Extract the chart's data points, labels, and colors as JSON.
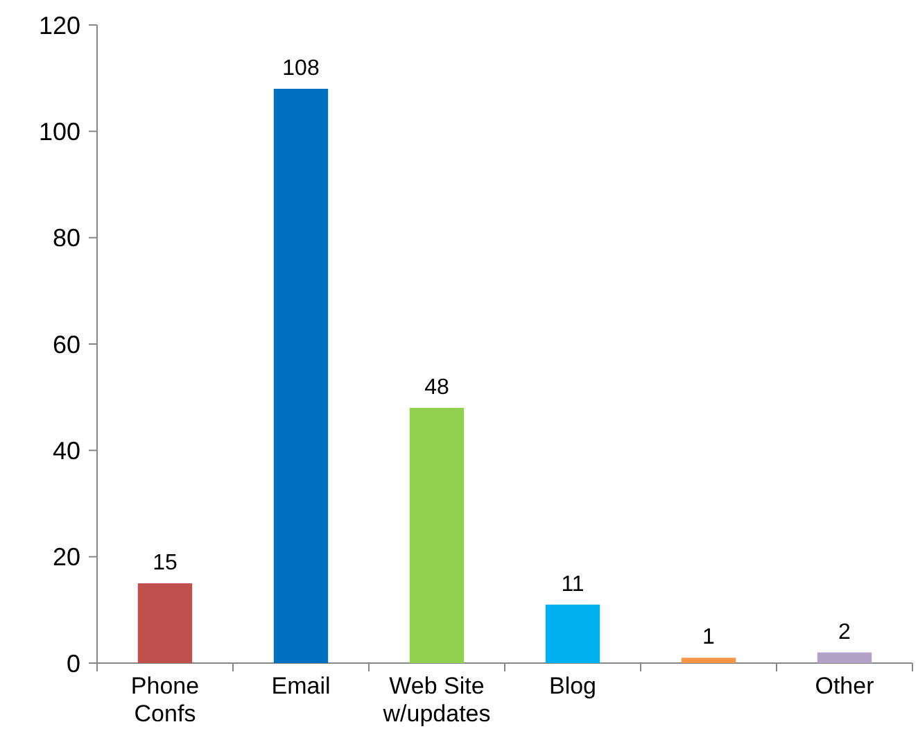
{
  "chart_data": {
    "type": "bar",
    "categories": [
      "Phone Confs",
      "Email",
      "Web Site w/updates",
      "Blog",
      null,
      "Other"
    ],
    "values": [
      15,
      108,
      48,
      11,
      1,
      2
    ],
    "colors": [
      "#c0504d",
      "#0070c0",
      "#92d050",
      "#00b0f0",
      "#f79646",
      "#b3a2c7"
    ],
    "ylim": [
      0,
      120
    ],
    "yticks": [
      0,
      20,
      40,
      60,
      80,
      100,
      120
    ],
    "grid": false,
    "data_labels": true
  }
}
